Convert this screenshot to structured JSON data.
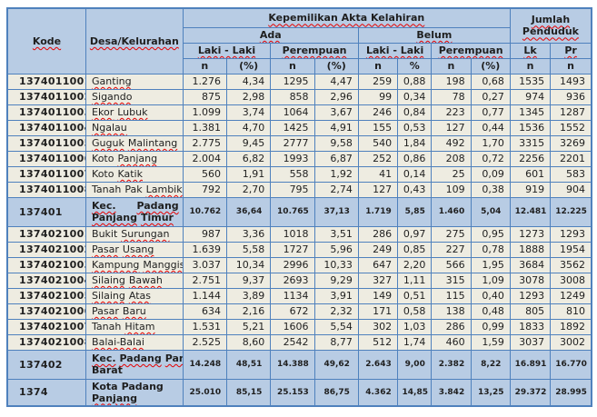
{
  "colors": {
    "border": "#4F81BD",
    "header_bg": "#B8CCE4",
    "row_bg": "#EEECE1",
    "summary_bg": "#B8CCE4",
    "squiggle": "#E60000",
    "text": "#1F1F1F"
  },
  "table": {
    "header": {
      "kode": "Kode",
      "desa": "Desa/Kelurahan",
      "akta": "Kepemilikan Akta Kelahiran",
      "jumlah": "Jumlah Penduduk",
      "ada": "Ada",
      "belum": "Belum",
      "laki": "Laki - Laki",
      "perempuan": "Perempuan",
      "lk": "Lk",
      "pr": "Pr",
      "n": "n",
      "pct_paren": "(%)",
      "pct": "%"
    },
    "rows": [
      {
        "code": "1374011001",
        "type": "data",
        "name_lines": [
          [
            {
              "t": "Ganting",
              "sq": true
            }
          ]
        ],
        "values": [
          "1.276",
          "4,34",
          "1295",
          "4,47",
          "259",
          "0,88",
          "198",
          "0,68",
          "1535",
          "1493"
        ]
      },
      {
        "code": "1374011002",
        "type": "data",
        "name_lines": [
          [
            {
              "t": "Sigando",
              "sq": true
            }
          ]
        ],
        "values": [
          "875",
          "2,98",
          "858",
          "2,96",
          "99",
          "0,34",
          "78",
          "0,27",
          "974",
          "936"
        ]
      },
      {
        "code": "1374011003",
        "type": "data",
        "name_lines": [
          [
            {
              "t": "Ekor",
              "sq": true
            },
            {
              "t": "Lubuk",
              "sq": true
            }
          ]
        ],
        "values": [
          "1.099",
          "3,74",
          "1064",
          "3,67",
          "246",
          "0,84",
          "223",
          "0,77",
          "1345",
          "1287"
        ]
      },
      {
        "code": "1374011004",
        "type": "data",
        "name_lines": [
          [
            {
              "t": "Ngalau",
              "sq": true
            }
          ]
        ],
        "values": [
          "1.381",
          "4,70",
          "1425",
          "4,91",
          "155",
          "0,53",
          "127",
          "0,44",
          "1536",
          "1552"
        ]
      },
      {
        "code": "1374011005",
        "type": "data",
        "name_lines": [
          [
            {
              "t": "Guguk",
              "sq": true
            },
            {
              "t": "Malintang",
              "sq": true
            }
          ]
        ],
        "values": [
          "2.775",
          "9,45",
          "2777",
          "9,58",
          "540",
          "1,84",
          "492",
          "1,70",
          "3315",
          "3269"
        ]
      },
      {
        "code": "1374011006",
        "type": "data",
        "name_lines": [
          [
            {
              "t": "Koto",
              "sq": false
            },
            {
              "t": "Panjang",
              "sq": true
            }
          ]
        ],
        "values": [
          "2.004",
          "6,82",
          "1993",
          "6,87",
          "252",
          "0,86",
          "208",
          "0,72",
          "2256",
          "2201"
        ]
      },
      {
        "code": "1374011007",
        "type": "data",
        "name_lines": [
          [
            {
              "t": "Koto",
              "sq": false
            },
            {
              "t": "Katik",
              "sq": true
            }
          ]
        ],
        "values": [
          "560",
          "1,91",
          "558",
          "1,92",
          "41",
          "0,14",
          "25",
          "0,09",
          "601",
          "583"
        ]
      },
      {
        "code": "1374011008",
        "type": "data",
        "name_lines": [
          [
            {
              "t": "Tanah",
              "sq": false
            },
            {
              "t": "Pak",
              "sq": false
            },
            {
              "t": "Lambik",
              "sq": true
            }
          ]
        ],
        "values": [
          "792",
          "2,70",
          "795",
          "2,74",
          "127",
          "0,43",
          "109",
          "0,38",
          "919",
          "904"
        ]
      },
      {
        "code": "137401",
        "type": "subtotal",
        "name_lines": [
          [
            {
              "t": "Kec.",
              "sq": true
            },
            {
              "t": "Padang",
              "sq": true
            }
          ],
          [
            {
              "t": "Panjang",
              "sq": true
            },
            {
              "t": "Timur",
              "sq": true
            }
          ]
        ],
        "values": [
          "10.762",
          "36,64",
          "10.765",
          "37,13",
          "1.719",
          "5,85",
          "1.460",
          "5,04",
          "12.481",
          "12.225"
        ]
      },
      {
        "code": "1374021001",
        "type": "data",
        "name_lines": [
          [
            {
              "t": "Bukit",
              "sq": false
            },
            {
              "t": "Surungan",
              "sq": true
            }
          ]
        ],
        "values": [
          "987",
          "3,36",
          "1018",
          "3,51",
          "286",
          "0,97",
          "275",
          "0,95",
          "1273",
          "1293"
        ]
      },
      {
        "code": "1374021002",
        "type": "data",
        "name_lines": [
          [
            {
              "t": "Pasar",
              "sq": true
            },
            {
              "t": "Usang",
              "sq": true
            }
          ]
        ],
        "values": [
          "1.639",
          "5,58",
          "1727",
          "5,96",
          "249",
          "0,85",
          "227",
          "0,78",
          "1888",
          "1954"
        ]
      },
      {
        "code": "1374021003",
        "type": "data",
        "name_lines": [
          [
            {
              "t": "Kampung",
              "sq": true
            },
            {
              "t": "Manggis",
              "sq": true
            }
          ]
        ],
        "values": [
          "3.037",
          "10,34",
          "2996",
          "10,33",
          "647",
          "2,20",
          "566",
          "1,95",
          "3684",
          "3562"
        ]
      },
      {
        "code": "1374021004",
        "type": "data",
        "name_lines": [
          [
            {
              "t": "Silaing",
              "sq": true
            },
            {
              "t": "Bawah",
              "sq": true
            }
          ]
        ],
        "values": [
          "2.751",
          "9,37",
          "2693",
          "9,29",
          "327",
          "1,11",
          "315",
          "1,09",
          "3078",
          "3008"
        ]
      },
      {
        "code": "1374021005",
        "type": "data",
        "name_lines": [
          [
            {
              "t": "Silaing",
              "sq": true
            },
            {
              "t": "Atas",
              "sq": true
            }
          ]
        ],
        "values": [
          "1.144",
          "3,89",
          "1134",
          "3,91",
          "149",
          "0,51",
          "115",
          "0,40",
          "1293",
          "1249"
        ]
      },
      {
        "code": "1374021006",
        "type": "data",
        "name_lines": [
          [
            {
              "t": "Pasar",
              "sq": true
            },
            {
              "t": "Baru",
              "sq": true
            }
          ]
        ],
        "values": [
          "634",
          "2,16",
          "672",
          "2,32",
          "171",
          "0,58",
          "138",
          "0,48",
          "805",
          "810"
        ]
      },
      {
        "code": "1374021007",
        "type": "data",
        "name_lines": [
          [
            {
              "t": "Tanah",
              "sq": false
            },
            {
              "t": "Hitam",
              "sq": true
            }
          ]
        ],
        "values": [
          "1.531",
          "5,21",
          "1606",
          "5,54",
          "302",
          "1,03",
          "286",
          "0,99",
          "1833",
          "1892"
        ]
      },
      {
        "code": "1374021008",
        "type": "data",
        "name_lines": [
          [
            {
              "t": "Balai-Balai",
              "sq": true
            }
          ]
        ],
        "values": [
          "2.525",
          "8,60",
          "2542",
          "8,77",
          "512",
          "1,74",
          "460",
          "1,59",
          "3037",
          "3002"
        ]
      },
      {
        "code": "137402",
        "type": "subtotal",
        "name_lines": [
          [
            {
              "t": "Kec.",
              "sq": true
            },
            {
              "t": "Padang",
              "sq": true
            },
            {
              "t": "Panjang",
              "sq": true
            }
          ],
          [
            {
              "t": "Barat",
              "sq": false
            }
          ]
        ],
        "values": [
          "14.248",
          "48,51",
          "14.388",
          "49,62",
          "2.643",
          "9,00",
          "2.382",
          "8,22",
          "16.891",
          "16.770"
        ]
      },
      {
        "code": "1374",
        "type": "total",
        "name_lines": [
          [
            {
              "t": "Kota",
              "sq": false
            },
            {
              "t": "Padang",
              "sq": false
            }
          ],
          [
            {
              "t": "Panjang",
              "sq": true
            }
          ]
        ],
        "values": [
          "25.010",
          "85,15",
          "25.153",
          "86,75",
          "4.362",
          "14,85",
          "3.842",
          "13,25",
          "29.372",
          "28.995"
        ]
      }
    ]
  }
}
